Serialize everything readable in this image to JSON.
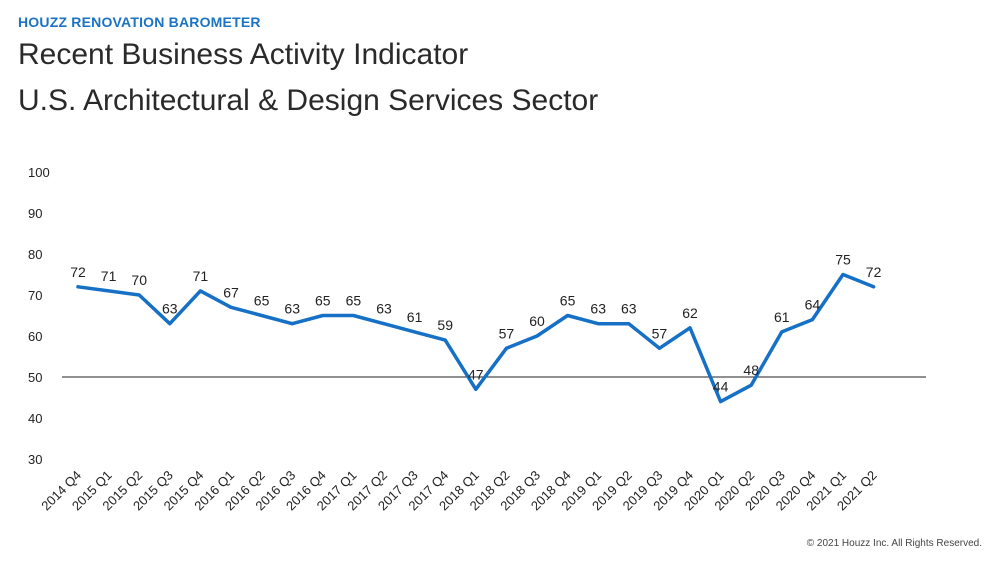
{
  "header": {
    "kicker": "HOUZZ RENOVATION BAROMETER",
    "title_line1": "Recent Business Activity Indicator",
    "title_line2": "U.S. Architectural & Design Services Sector"
  },
  "footer": {
    "copyright": "© 2021 Houzz Inc. All Rights Reserved."
  },
  "colors": {
    "line": "#1570c6",
    "reference": "#222222"
  },
  "chart_data": {
    "type": "line",
    "title": "Recent Business Activity Indicator U.S. Architectural & Design Services Sector",
    "xlabel": "",
    "ylabel": "",
    "ylim": [
      30,
      100
    ],
    "yticks": [
      "100",
      "90",
      "80",
      "70",
      "60",
      "50",
      "40",
      "30"
    ],
    "reference_line": 50,
    "grid": false,
    "legend": "none",
    "categories": [
      "2014 Q4",
      "2015 Q1",
      "2015 Q2",
      "2015 Q3",
      "2015 Q4",
      "2016 Q1",
      "2016 Q2",
      "2016 Q3",
      "2016 Q4",
      "2017 Q1",
      "2017 Q2",
      "2017 Q3",
      "2017 Q4",
      "2018 Q1",
      "2018 Q2",
      "2018 Q3",
      "2018 Q4",
      "2019 Q1",
      "2019 Q2",
      "2019 Q3",
      "2019 Q4",
      "2020 Q1",
      "2020 Q2",
      "2020 Q3",
      "2020 Q4",
      "2021 Q1",
      "2021 Q2"
    ],
    "series": [
      {
        "name": "Recent Business Activity Indicator",
        "values": [
          72,
          71,
          70,
          63,
          71,
          67,
          65,
          63,
          65,
          65,
          63,
          61,
          59,
          47,
          57,
          60,
          65,
          63,
          63,
          57,
          62,
          44,
          48,
          61,
          64,
          75,
          72
        ]
      }
    ]
  }
}
